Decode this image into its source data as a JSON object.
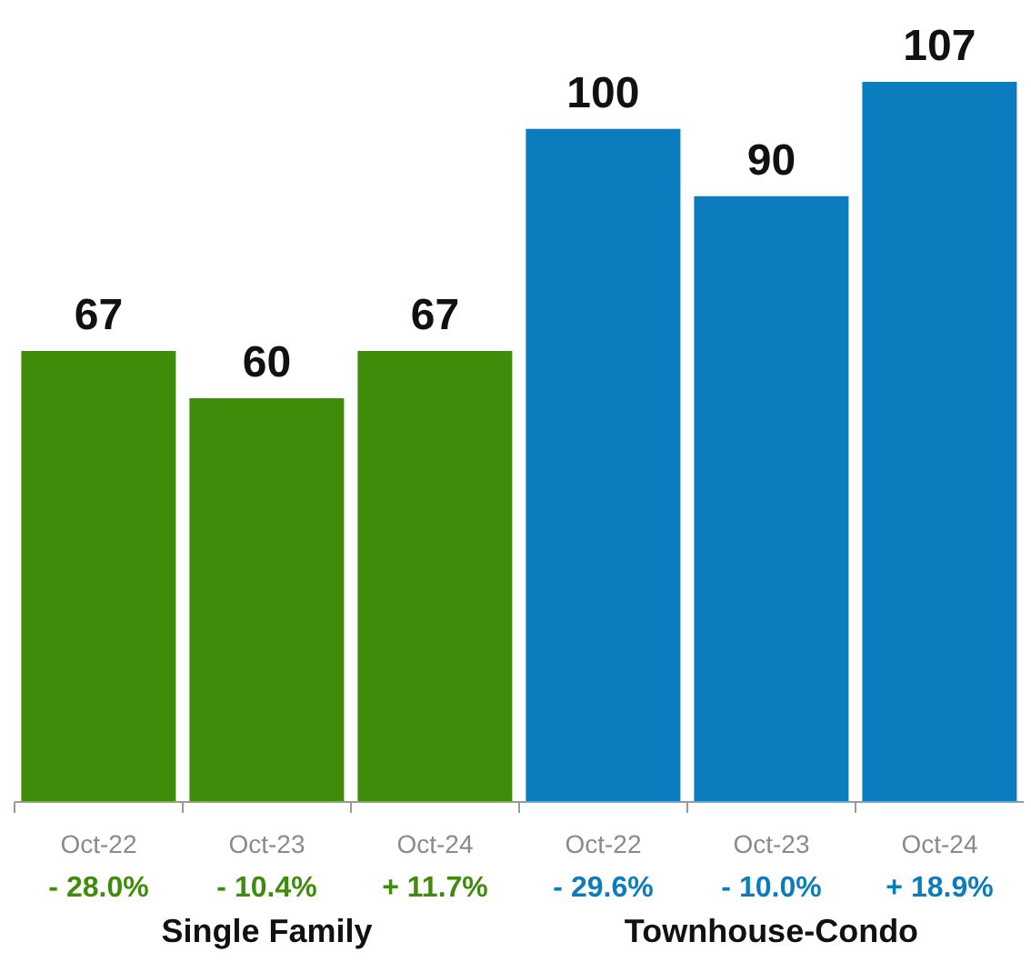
{
  "chart_data": {
    "type": "bar",
    "categories": [
      "Oct-22",
      "Oct-23",
      "Oct-24",
      "Oct-22",
      "Oct-23",
      "Oct-24"
    ],
    "values": [
      67,
      60,
      67,
      100,
      90,
      107
    ],
    "colors": [
      "#3f8c0a",
      "#3f8c0a",
      "#3f8c0a",
      "#0b7dbe",
      "#0b7dbe",
      "#0b7dbe"
    ],
    "data_labels": true,
    "annotations": [
      "- 28.0%",
      "- 10.4%",
      "+ 11.7%",
      "- 29.6%",
      "- 10.0%",
      "+ 18.9%",
      "Single Family",
      "Townhouse-Condo"
    ]
  }
}
